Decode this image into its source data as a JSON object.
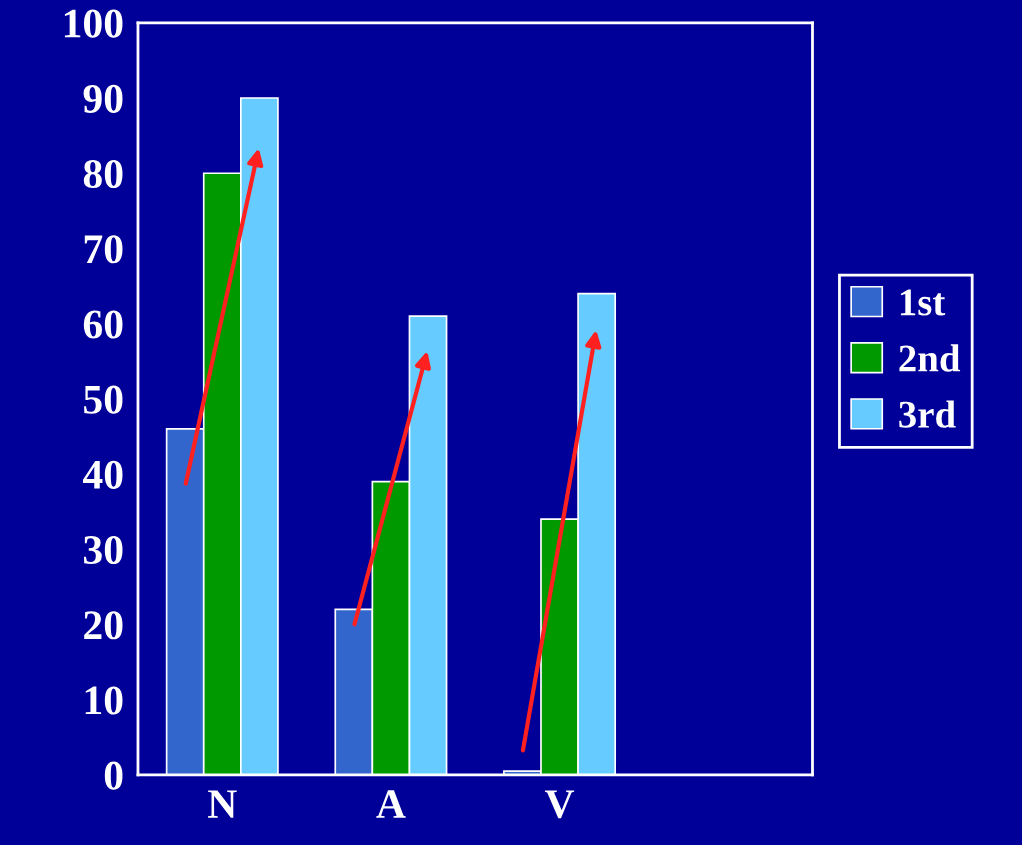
{
  "chart_data": {
    "type": "bar",
    "categories": [
      "N",
      "A",
      "V",
      null
    ],
    "series": [
      {
        "name": "1st",
        "color": "#3366cc",
        "values": [
          46,
          22,
          0.5,
          null
        ]
      },
      {
        "name": "2nd",
        "color": "#009900",
        "values": [
          80,
          39,
          34,
          null
        ]
      },
      {
        "name": "3rd",
        "color": "#66ccff",
        "values": [
          90,
          61,
          64,
          null
        ]
      }
    ],
    "ylim": [
      0,
      100
    ],
    "yticks": [
      0,
      10,
      20,
      30,
      40,
      50,
      60,
      70,
      80,
      90,
      100
    ],
    "grid": false,
    "legend": "right"
  }
}
